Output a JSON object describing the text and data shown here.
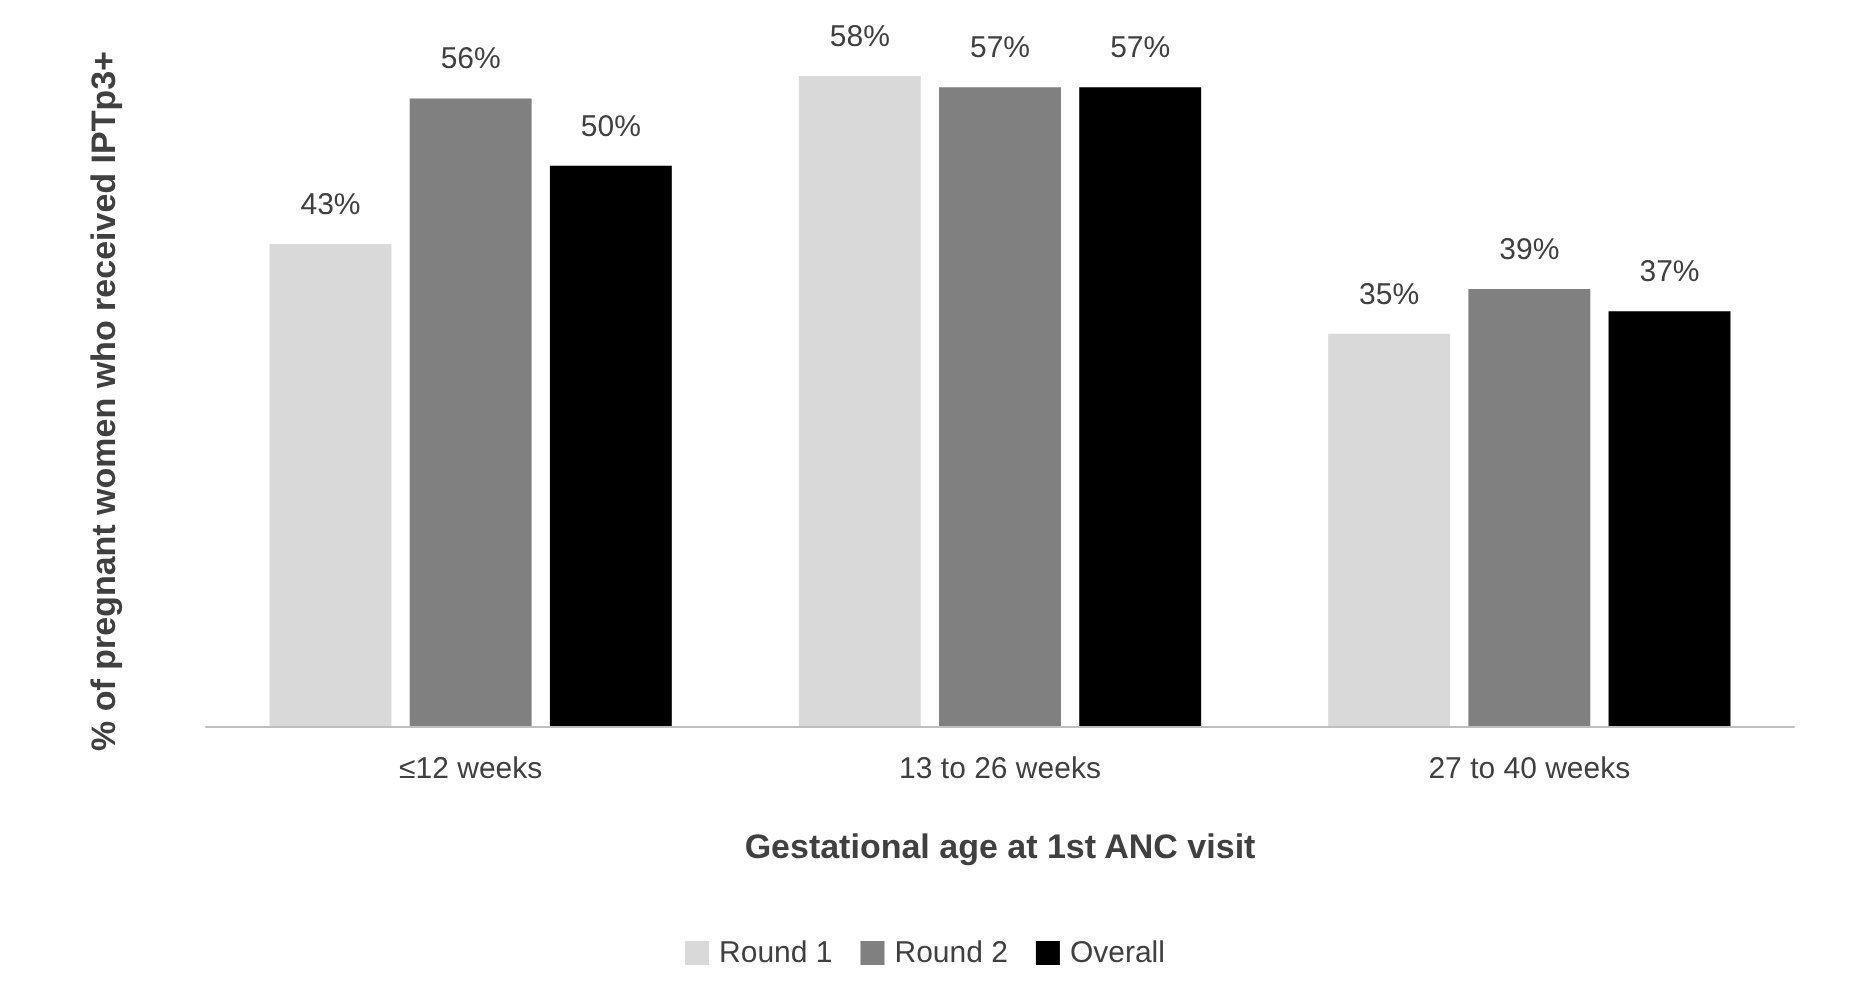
{
  "chart_data": {
    "type": "bar",
    "xlabel": "Gestational age at 1st ANC visit",
    "ylabel": "% of pregnant women who received IPTp3+",
    "categories": [
      "≤12 weeks",
      "13 to 26 weeks",
      "27 to 40 weeks"
    ],
    "series": [
      {
        "name": "Round 1",
        "color": "#d9d9d9",
        "values": [
          43,
          58,
          35
        ],
        "value_labels": [
          "43%",
          "58%",
          "35%"
        ]
      },
      {
        "name": "Round 2",
        "color": "#808080",
        "values": [
          56,
          57,
          39
        ],
        "value_labels": [
          "56%",
          "57%",
          "39%"
        ]
      },
      {
        "name": "Overall",
        "color": "#000000",
        "values": [
          50,
          57,
          37
        ],
        "value_labels": [
          "50%",
          "57%",
          "37%"
        ]
      }
    ],
    "grid": false,
    "legend": "bottom"
  }
}
